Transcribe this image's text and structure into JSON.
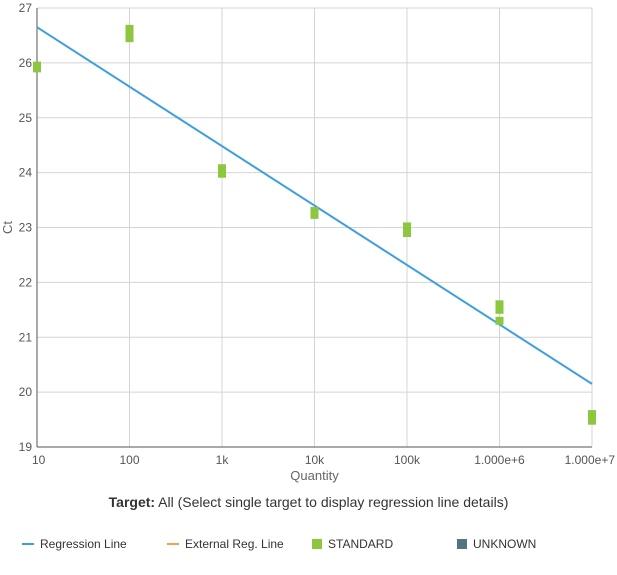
{
  "chart_data": {
    "type": "scatter",
    "xlabel": "Quantity",
    "ylabel": "Ct",
    "x_scale": "log",
    "x_ticks": [
      10,
      100,
      1000,
      10000,
      100000,
      1000000,
      10000000
    ],
    "x_tick_labels": [
      "10",
      "100",
      "1k",
      "10k",
      "100k",
      "1.000e+6",
      "1.000e+7"
    ],
    "ylim": [
      19,
      27
    ],
    "y_ticks": [
      19,
      20,
      21,
      22,
      23,
      24,
      25,
      26,
      27
    ],
    "grid": true,
    "series": [
      {
        "name": "STANDARD",
        "color": "#8dc63f",
        "points": [
          {
            "x": 10,
            "y": 25.95
          },
          {
            "x": 10,
            "y": 25.9
          },
          {
            "x": 100,
            "y": 26.62
          },
          {
            "x": 100,
            "y": 26.55
          },
          {
            "x": 100,
            "y": 26.45
          },
          {
            "x": 1000,
            "y": 24.08
          },
          {
            "x": 1000,
            "y": 23.98
          },
          {
            "x": 10000,
            "y": 23.3
          },
          {
            "x": 10000,
            "y": 23.23
          },
          {
            "x": 100000,
            "y": 23.02
          },
          {
            "x": 100000,
            "y": 22.9
          },
          {
            "x": 1000000,
            "y": 21.6
          },
          {
            "x": 1000000,
            "y": 21.5
          },
          {
            "x": 1000000,
            "y": 21.3
          },
          {
            "x": 10000000,
            "y": 19.6
          },
          {
            "x": 10000000,
            "y": 19.48
          }
        ]
      },
      {
        "name": "Regression Line",
        "color": "#3d9fdc",
        "line": [
          {
            "x": 10,
            "y": 26.65
          },
          {
            "x": 10000000,
            "y": 20.15
          }
        ]
      }
    ]
  },
  "target": {
    "label": "Target:",
    "text": " All (Select single target to display regression line details)"
  },
  "legend": {
    "items": [
      {
        "label": "Regression Line",
        "kind": "line",
        "color": "#3d9fdc"
      },
      {
        "label": "External Reg. Line",
        "kind": "line",
        "color": "#f39c5a"
      },
      {
        "label": "STANDARD",
        "kind": "box",
        "color": "#8dc63f"
      },
      {
        "label": "UNKNOWN",
        "kind": "box",
        "color": "#4f7681"
      }
    ]
  }
}
